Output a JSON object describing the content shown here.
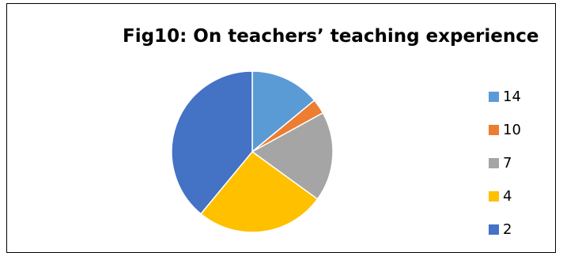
{
  "chart_data": {
    "type": "pie",
    "title": "Fig10: On teachers’ teaching experience",
    "legend_position": "right",
    "slices": [
      {
        "label": "14",
        "value": 14,
        "color": "#5B9BD5"
      },
      {
        "label": "10",
        "value": 3,
        "color": "#ED7D31"
      },
      {
        "label": "7",
        "value": 18,
        "color": "#A5A5A5"
      },
      {
        "label": "4",
        "value": 26,
        "color": "#FFC000"
      },
      {
        "label": "2",
        "value": 39,
        "color": "#4472C4"
      }
    ]
  }
}
